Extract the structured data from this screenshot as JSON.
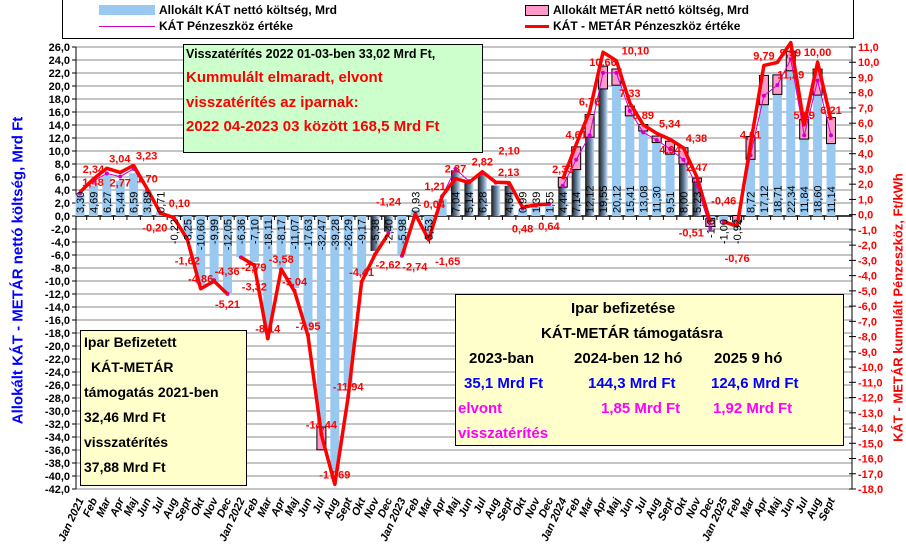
{
  "legend": {
    "kat_bar": "Allokált KÁT nettó költség, Mrd",
    "kat_line": "KÁT Pénzeszköz értéke",
    "metar_bar": "Allokált METÁR nettó költség, Mrd",
    "total_line": "KÁT - METÁR Pénzeszköz értéke"
  },
  "green_box": {
    "line1": "Visszatérítés 2022 01-03-ben 33,02 Mrd Ft,",
    "line2": "Kummulált elmaradt, elvont",
    "line3": "visszatérítés az iparnak:",
    "line4": "2022 04-2023 03 között 168,5 Mrd Ft"
  },
  "left_box": {
    "line1": "Ipar Befizetett",
    "line2": "KÁT-METÁR",
    "line3": "támogatás 2021-ben",
    "line4": "32,46 Mrd Ft",
    "line5": "visszatérítés",
    "line6": "37,88 Mrd Ft"
  },
  "right_box": {
    "title1": "Ipar  befizetése",
    "title2": "KÁT-METÁR támogatásra",
    "h2023": "2023-ban",
    "h2024": "2024-ben 12 hó",
    "h2025": "2025 9 hó",
    "v2023": "35,1 Mrd Ft",
    "v2024": "144,3 Mrd Ft",
    "v2025": "124,6 Mrd Ft",
    "elvont": "elvont",
    "e2024": "1,85 Mrd Ft",
    "e2025": "1,92 Mrd Ft",
    "visszaterites": "visszatérítés"
  },
  "colors": {
    "kat_bar": "#99c8f0",
    "metar_bar": "#ff99cc",
    "kat_line": "#cc00cc",
    "total_line": "#ff0000",
    "left_axis": "#0000ff",
    "right_axis": "#ff0000"
  },
  "chart_data": {
    "type": "bar",
    "ylabel": "Allokált KÁT - METÁR nettó költség, Mrd Ft",
    "y2label": "KÁT - METÁR  kumulált Pénzeszköz, Ft/kWh",
    "ylim": [
      -42,
      26
    ],
    "y2lim": [
      -18,
      11
    ],
    "yticks": [
      "26,0",
      "24,0",
      "22,0",
      "20,0",
      "18,0",
      "16,0",
      "14,0",
      "12,0",
      "10,0",
      "8,0",
      "6,0",
      "4,0",
      "2,0",
      "0,0",
      "-2,0",
      "-4,0",
      "-6,0",
      "-8,0",
      "-10,0",
      "-12,0",
      "-14,0",
      "-16,0",
      "-18,0",
      "-20,0",
      "-22,0",
      "-24,0",
      "-26,0",
      "-28,0",
      "-30,0",
      "-32,0",
      "-34,0",
      "-36,0",
      "-38,0",
      "-40,0",
      "-42,0"
    ],
    "y2ticks": [
      "11,0",
      "10,0",
      "9,0",
      "8,0",
      "7,0",
      "6,0",
      "5,0",
      "4,0",
      "3,0",
      "2,0",
      "1,0",
      "0,0",
      "-1,0",
      "-2,0",
      "-3,0",
      "-4,0",
      "-5,0",
      "-6,0",
      "-7,0",
      "-8,0",
      "-9,0",
      "-10,0",
      "-11,0",
      "-12,0",
      "-13,0",
      "-14,0",
      "-15,0",
      "-16,0",
      "-17,0",
      "-18,0"
    ],
    "categories": [
      "Jan 2021",
      "Feb",
      "Mar",
      "Apr",
      "Maj",
      "Jun",
      "Jul",
      "Aug",
      "Sept",
      "Okt",
      "Nov",
      "Dec",
      "Jan 2022",
      "Feb",
      "Mar",
      "Apr",
      "Maj",
      "Jun",
      "Jul",
      "Aug",
      "Sept",
      "Okt",
      "Nov",
      "Dec",
      "Jan 2023",
      "Feb",
      "Mar",
      "Apr",
      "Maj",
      "Jun",
      "Jul",
      "Aug",
      "Sept",
      "Okt",
      "Nov",
      "Dec",
      "Jan 2024",
      "Feb",
      "Mar",
      "Apr",
      "Maj",
      "Jun",
      "Jul",
      "Aug",
      "Sept",
      "Okt",
      "Nov",
      "Dec",
      "Jan 2025",
      "Feb",
      "Mar",
      "Apr",
      "Maj",
      "Jun",
      "Jul",
      "Aug",
      "Sept"
    ],
    "kat_bar_values": [
      3.3,
      4.69,
      6.27,
      5.44,
      6.59,
      3.89,
      0.71,
      -0.22,
      -3.25,
      -10.6,
      -9.99,
      -12.05,
      -6.36,
      -7.1,
      -18.11,
      -8.17,
      -11.07,
      -17.63,
      -32.47,
      -39.28,
      -26.29,
      -9.17,
      -5.38,
      -2.4,
      -5.98,
      0.93,
      -3.53,
      2.6,
      7.04,
      5.14,
      6.28,
      4.7,
      4.64,
      0.99,
      1.39,
      1.55,
      4.44,
      7.14,
      12.12,
      19.55,
      20.12,
      15.41,
      13.08,
      11.3,
      9.51,
      8.0,
      5.23,
      -1.6,
      -1.0,
      -0.92,
      8.72,
      17.12,
      18.71,
      22.34,
      11.84,
      18.6,
      11.14
    ],
    "kat_bar_labels": [
      "3,30",
      "4,69",
      "6,27",
      "5,44",
      "6,59",
      "3,89",
      "0,71",
      "-0,22",
      "-3,25",
      "-10,60",
      "-9,99",
      "-12,05",
      "-6,36",
      "-7,10",
      "-18,11",
      "-8,17",
      "-11,07",
      "-17,63",
      "-32,47",
      "-39,28",
      "-26,29",
      "-9,17",
      "-5,38",
      "-2,40",
      "-5,98",
      "0,93",
      "-3,53",
      "",
      "7,04",
      "5,14",
      "6,28",
      "",
      "4,64",
      "0,99",
      "1,39",
      "1,55",
      "4,44",
      "7,14",
      "12,12",
      "19,55",
      "20,12",
      "15,41",
      "13,08",
      "11,30",
      "9,51",
      "8,00",
      "5,23",
      "-1,6",
      "-1,00",
      "-0,92",
      "8,72",
      "17,12",
      "18,71",
      "22,34",
      "11,84",
      "18,60",
      "11,14"
    ],
    "dark_bars": [
      22,
      23,
      28,
      29,
      30,
      31,
      32,
      36,
      37,
      38,
      39,
      45,
      46
    ],
    "metar_bar_values": [
      0,
      0,
      0,
      0,
      0,
      0,
      0,
      0,
      0,
      0,
      0,
      0,
      0,
      0,
      0,
      0,
      0,
      0,
      -3.5,
      0,
      0,
      0,
      0,
      0,
      0,
      0,
      0,
      0,
      0,
      0,
      0,
      0,
      0,
      0,
      0,
      0,
      1.5,
      3.5,
      3.5,
      3.5,
      2.5,
      1.5,
      1,
      1,
      2,
      2.5,
      0.6,
      1.2,
      0,
      1,
      3.5,
      4.5,
      3,
      3,
      3,
      4,
      4
    ],
    "total_line_values": [
      1.48,
      2.34,
      3.04,
      2.77,
      3.23,
      1.7,
      0.1,
      -0.2,
      -1.62,
      -4.86,
      -4.36,
      -5.21,
      -2.79,
      -3.32,
      -8.14,
      -3.58,
      -5.04,
      -7.95,
      -14.44,
      -17.69,
      -11.94,
      -4.41,
      -2.62,
      -1.24,
      -2.74,
      0.04,
      -1.65,
      1.21,
      2.37,
      2.1,
      2.82,
      2.13,
      2.1,
      0.48,
      0.64,
      0.7,
      2.33,
      4.61,
      6.76,
      10.66,
      10.1,
      7.33,
      5.89,
      5.34,
      4.94,
      4.38,
      2.47,
      -0.51,
      -0.46,
      -0.76,
      4.61,
      9.79,
      9.99,
      11.29,
      5.89,
      10.0,
      6.21
    ],
    "total_line_labels": [
      "1,48",
      "2,34",
      "3,04",
      "2,77",
      "3,23",
      "1,70",
      "0,10",
      "-0,20",
      "-1,62",
      "-4,86",
      "-4,36",
      "-5,21",
      "-2,79",
      "-3,32",
      "-8,14",
      "-3,58",
      "-5,04",
      "-7,95",
      "-14,44",
      "-17,69",
      "-11,94",
      "-4,41",
      "-2,62",
      "-1,24",
      "-2,74",
      "0,04",
      "-1,65",
      "1,21",
      "2,37",
      "",
      "2,82",
      "2,13",
      "2,10",
      "0,48",
      "0,64",
      "",
      "2,33",
      "4,61",
      "6,76",
      "10,66",
      "10,10",
      "7,33",
      "5,89",
      "5,34",
      "4,94",
      "4,38",
      "2,47",
      "-0,51",
      "-0,46",
      "-0,76",
      "4,61",
      "9,79",
      "9,99",
      "11,29",
      "5,89",
      "10,00",
      "6,21"
    ],
    "kat_line_values": [
      1.4,
      2.2,
      2.7,
      2.5,
      3.0,
      1.6,
      0.1,
      -0.2,
      -1.6,
      -4.8,
      -4.3,
      -5.2,
      -2.8,
      -3.3,
      -8.1,
      -3.6,
      -5.0,
      -7.9,
      -14.4,
      -17.6,
      -11.9,
      -4.4,
      -2.6,
      -1.2,
      -2.7,
      0.0,
      -1.6,
      1.2,
      3.0,
      2.2,
      2.7,
      2.1,
      2.0,
      0.4,
      0.6,
      0.7,
      1.9,
      3.6,
      5.2,
      9.3,
      9.3,
      6.8,
      5.4,
      4.9,
      4.3,
      3.6,
      1.9,
      -0.9,
      -0.5,
      -0.7,
      3.9,
      7.8,
      8.5,
      10.2,
      5.2,
      8.8,
      5.2
    ]
  }
}
